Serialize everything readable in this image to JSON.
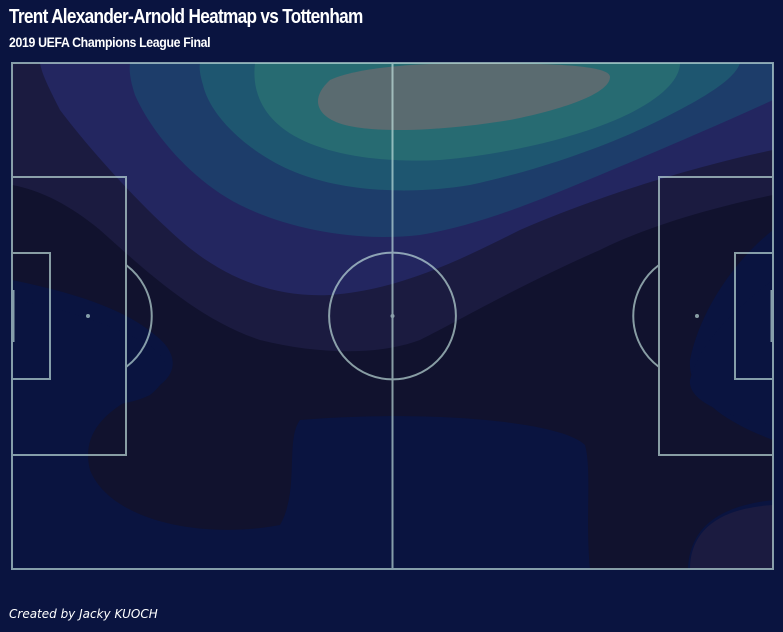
{
  "header": {
    "title": "Trent Alexander-Arnold Heatmap vs Tottenham",
    "subtitle": "2019 UEFA Champions League Final"
  },
  "footer": {
    "credit": "Created by Jacky KUOCH"
  },
  "colors": {
    "background": "#0a1440",
    "pitch_lines": "#c8e8e4",
    "density_levels": [
      "#0a1440",
      "#11122e",
      "#1b1b40",
      "#232660",
      "#1d3d6a",
      "#1e5670",
      "#276b72",
      "#5a6b70"
    ]
  },
  "chart_data": {
    "type": "heatmap",
    "subtype": "kde-contour-on-football-pitch",
    "title": "Trent Alexander-Arnold Heatmap vs Tottenham",
    "subtitle": "2019 UEFA Champions League Final",
    "pitch": {
      "length": 120,
      "width": 80,
      "orientation": "horizontal"
    },
    "levels": 8,
    "hotspots": [
      {
        "x": 74,
        "y": 6,
        "intensity": 1.0
      },
      {
        "x": 120,
        "y": 76,
        "intensity": 0.2
      }
    ]
  }
}
